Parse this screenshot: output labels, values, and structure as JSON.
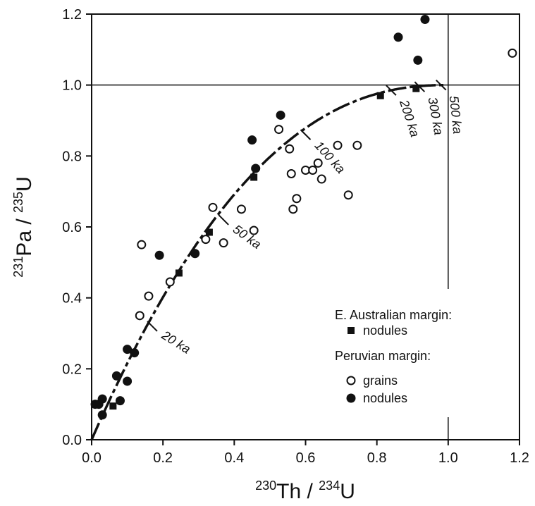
{
  "chart_data": {
    "type": "scatter",
    "xlabel": {
      "pre": "230",
      "main1": "Th / ",
      "sup2": "234",
      "main2": "U"
    },
    "ylabel": {
      "pre": "231",
      "main1": "Pa / ",
      "sup2": "235",
      "main2": "U"
    },
    "xlim": [
      0,
      1.2
    ],
    "ylim": [
      0,
      1.2
    ],
    "xticks": [
      "0.0",
      "0.2",
      "0.4",
      "0.6",
      "0.8",
      "1.0",
      "1.2"
    ],
    "yticks": [
      "0.0",
      "0.2",
      "0.4",
      "0.6",
      "0.8",
      "1.0",
      "1.2"
    ],
    "reference_lines": {
      "x": 1.0,
      "y": 1.0
    },
    "age_labels": [
      {
        "text": "20 ka",
        "x": 0.17,
        "y": 0.32
      },
      {
        "text": "50 ka",
        "x": 0.37,
        "y": 0.62
      },
      {
        "text": "100 ka",
        "x": 0.6,
        "y": 0.86
      },
      {
        "text": "200 ka",
        "x": 0.84,
        "y": 0.985
      },
      {
        "text": "300 ka",
        "x": 0.92,
        "y": 0.995
      },
      {
        "text": "500 ka",
        "x": 0.98,
        "y": 1.0
      }
    ],
    "series": [
      {
        "group": "E. Australian margin:",
        "name": "nodules",
        "marker": "square-filled",
        "x": [
          0.06,
          0.245,
          0.33,
          0.455,
          0.81,
          0.91
        ],
        "y": [
          0.095,
          0.47,
          0.585,
          0.74,
          0.97,
          0.99
        ]
      },
      {
        "group": "Peruvian margin:",
        "name": "grains",
        "marker": "circle-open",
        "x": [
          0.135,
          0.16,
          0.14,
          0.22,
          0.32,
          0.34,
          0.37,
          0.42,
          0.455,
          0.525,
          0.555,
          0.56,
          0.565,
          0.575,
          0.6,
          0.62,
          0.635,
          0.645,
          0.69,
          0.72,
          0.745,
          1.18
        ],
        "y": [
          0.35,
          0.405,
          0.55,
          0.445,
          0.565,
          0.655,
          0.555,
          0.65,
          0.59,
          0.875,
          0.82,
          0.75,
          0.65,
          0.68,
          0.76,
          0.76,
          0.78,
          0.735,
          0.83,
          0.69,
          0.83,
          1.09
        ]
      },
      {
        "group": "Peruvian margin:",
        "name": "nodules",
        "marker": "circle-filled",
        "x": [
          0.01,
          0.02,
          0.03,
          0.03,
          0.07,
          0.08,
          0.1,
          0.1,
          0.12,
          0.19,
          0.29,
          0.45,
          0.46,
          0.53,
          0.86,
          0.915,
          0.935
        ],
        "y": [
          0.1,
          0.1,
          0.07,
          0.115,
          0.18,
          0.11,
          0.255,
          0.165,
          0.245,
          0.52,
          0.525,
          0.845,
          0.765,
          0.915,
          1.135,
          1.07,
          1.185
        ]
      }
    ],
    "legend": {
      "group1_title": "E. Australian margin:",
      "group1_item1": "nodules",
      "group2_title": "Peruvian margin:",
      "group2_item1": "grains",
      "group2_item2": "nodules"
    }
  }
}
